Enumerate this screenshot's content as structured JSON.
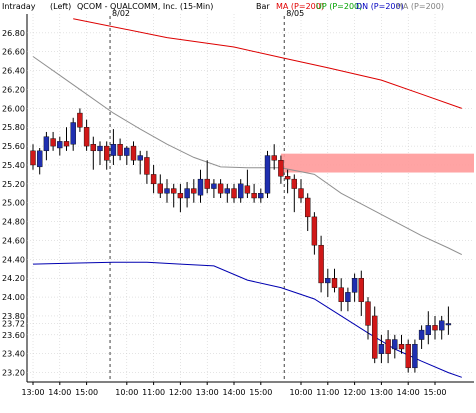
{
  "header": {
    "interval_label": "Intraday",
    "axis_side": "(Left)",
    "title": "QCOM - QUALCOMM, Inc. (15-Min)",
    "type_label": "Bar",
    "legend": [
      {
        "label": "MA (P=200)",
        "color": "#e00000"
      },
      {
        "label": "UP (P=200)",
        "color": "#00a000"
      },
      {
        "label": "DN (P=200)",
        "color": "#0000c0"
      },
      {
        "label": "MA (P=200)",
        "color": "#808080"
      }
    ]
  },
  "colors": {
    "up_candle": "#1f2fb0",
    "down_candle": "#d01818",
    "wick": "#000000",
    "ma_red": "#dd0000",
    "ma_gray": "#909090",
    "ma_blue": "#0000b0",
    "zone": "#ff9a9a",
    "grid": "#c8c8c8",
    "session": "#404040"
  },
  "chart_data": {
    "type": "candlestick",
    "title": "QCOM - QUALCOMM, Inc. (15-Min)",
    "ylim": [
      23.1,
      27.0
    ],
    "y_ticks": [
      "26.80",
      "26.60",
      "26.40",
      "26.20",
      "26.00",
      "25.80",
      "25.60",
      "25.40",
      "25.20",
      "25.00",
      "24.80",
      "24.60",
      "24.40",
      "24.20",
      "24.00",
      "23.80",
      "23.72",
      "23.60",
      "23.40",
      "23.20"
    ],
    "x_ticks": [
      {
        "bar": 0,
        "label": "13:00"
      },
      {
        "bar": 4,
        "label": "14:00"
      },
      {
        "bar": 8,
        "label": "15:00"
      },
      {
        "bar": 14,
        "label": "10:00"
      },
      {
        "bar": 18,
        "label": "11:00"
      },
      {
        "bar": 22,
        "label": "12:00"
      },
      {
        "bar": 26,
        "label": "13:00"
      },
      {
        "bar": 30,
        "label": "14:00"
      },
      {
        "bar": 34,
        "label": "15:00"
      },
      {
        "bar": 40,
        "label": "10:00"
      },
      {
        "bar": 44,
        "label": "11:00"
      },
      {
        "bar": 48,
        "label": "12:00"
      },
      {
        "bar": 52,
        "label": "13:00"
      },
      {
        "bar": 56,
        "label": "14:00"
      },
      {
        "bar": 60,
        "label": "15:00"
      }
    ],
    "sessions": [
      {
        "bar": 11.5,
        "label": "8/02"
      },
      {
        "bar": 37.5,
        "label": "8/05"
      }
    ],
    "candles": [
      {
        "o": 25.55,
        "h": 25.62,
        "l": 25.35,
        "c": 25.4
      },
      {
        "o": 25.38,
        "h": 25.58,
        "l": 25.3,
        "c": 25.55
      },
      {
        "o": 25.55,
        "h": 25.75,
        "l": 25.45,
        "c": 25.7
      },
      {
        "o": 25.68,
        "h": 25.75,
        "l": 25.55,
        "c": 25.6
      },
      {
        "o": 25.58,
        "h": 25.7,
        "l": 25.5,
        "c": 25.65
      },
      {
        "o": 25.65,
        "h": 25.8,
        "l": 25.55,
        "c": 25.6
      },
      {
        "o": 25.62,
        "h": 25.9,
        "l": 25.55,
        "c": 25.85
      },
      {
        "o": 25.95,
        "h": 26.0,
        "l": 25.75,
        "c": 25.8
      },
      {
        "o": 25.8,
        "h": 25.88,
        "l": 25.55,
        "c": 25.6
      },
      {
        "o": 25.62,
        "h": 25.7,
        "l": 25.35,
        "c": 25.55
      },
      {
        "o": 25.55,
        "h": 25.65,
        "l": 25.4,
        "c": 25.6
      },
      {
        "o": 25.6,
        "h": 25.65,
        "l": 25.35,
        "c": 25.45
      },
      {
        "o": 25.5,
        "h": 25.78,
        "l": 25.4,
        "c": 25.62
      },
      {
        "o": 25.62,
        "h": 25.68,
        "l": 25.45,
        "c": 25.5
      },
      {
        "o": 25.5,
        "h": 25.6,
        "l": 25.4,
        "c": 25.58
      },
      {
        "o": 25.6,
        "h": 25.65,
        "l": 25.4,
        "c": 25.45
      },
      {
        "o": 25.45,
        "h": 25.55,
        "l": 25.3,
        "c": 25.5
      },
      {
        "o": 25.48,
        "h": 25.55,
        "l": 25.2,
        "c": 25.3
      },
      {
        "o": 25.3,
        "h": 25.4,
        "l": 25.1,
        "c": 25.2
      },
      {
        "o": 25.2,
        "h": 25.3,
        "l": 25.05,
        "c": 25.1
      },
      {
        "o": 25.1,
        "h": 25.25,
        "l": 25.0,
        "c": 25.15
      },
      {
        "o": 25.15,
        "h": 25.2,
        "l": 24.95,
        "c": 25.1
      },
      {
        "o": 25.1,
        "h": 25.2,
        "l": 24.9,
        "c": 25.05
      },
      {
        "o": 25.05,
        "h": 25.22,
        "l": 24.95,
        "c": 25.15
      },
      {
        "o": 25.15,
        "h": 25.25,
        "l": 25.0,
        "c": 25.1
      },
      {
        "o": 25.08,
        "h": 25.35,
        "l": 25.0,
        "c": 25.25
      },
      {
        "o": 25.25,
        "h": 25.45,
        "l": 25.1,
        "c": 25.15
      },
      {
        "o": 25.15,
        "h": 25.25,
        "l": 25.05,
        "c": 25.2
      },
      {
        "o": 25.2,
        "h": 25.25,
        "l": 25.05,
        "c": 25.1
      },
      {
        "o": 25.1,
        "h": 25.2,
        "l": 25.0,
        "c": 25.15
      },
      {
        "o": 25.15,
        "h": 25.2,
        "l": 25.0,
        "c": 25.05
      },
      {
        "o": 25.05,
        "h": 25.25,
        "l": 25.0,
        "c": 25.2
      },
      {
        "o": 25.18,
        "h": 25.35,
        "l": 25.05,
        "c": 25.1
      },
      {
        "o": 25.1,
        "h": 25.2,
        "l": 25.0,
        "c": 25.05
      },
      {
        "o": 25.05,
        "h": 25.15,
        "l": 25.0,
        "c": 25.1
      },
      {
        "o": 25.1,
        "h": 25.55,
        "l": 25.05,
        "c": 25.5
      },
      {
        "o": 25.5,
        "h": 25.62,
        "l": 25.35,
        "c": 25.45
      },
      {
        "o": 25.45,
        "h": 25.5,
        "l": 25.2,
        "c": 25.28
      },
      {
        "o": 25.28,
        "h": 25.35,
        "l": 25.1,
        "c": 25.25
      },
      {
        "o": 25.25,
        "h": 25.3,
        "l": 24.9,
        "c": 25.15
      },
      {
        "o": 25.15,
        "h": 25.25,
        "l": 25.0,
        "c": 25.05
      },
      {
        "o": 25.05,
        "h": 25.1,
        "l": 24.7,
        "c": 24.85
      },
      {
        "o": 24.85,
        "h": 24.9,
        "l": 24.45,
        "c": 24.55
      },
      {
        "o": 24.55,
        "h": 24.65,
        "l": 24.05,
        "c": 24.15
      },
      {
        "o": 24.15,
        "h": 24.3,
        "l": 24.0,
        "c": 24.2
      },
      {
        "o": 24.2,
        "h": 24.3,
        "l": 24.05,
        "c": 24.1
      },
      {
        "o": 24.1,
        "h": 24.2,
        "l": 23.85,
        "c": 23.95
      },
      {
        "o": 23.95,
        "h": 24.1,
        "l": 23.85,
        "c": 24.05
      },
      {
        "o": 24.05,
        "h": 24.25,
        "l": 23.95,
        "c": 24.2
      },
      {
        "o": 24.2,
        "h": 24.28,
        "l": 23.8,
        "c": 23.95
      },
      {
        "o": 23.95,
        "h": 24.0,
        "l": 23.55,
        "c": 23.7
      },
      {
        "o": 23.8,
        "h": 23.9,
        "l": 23.3,
        "c": 23.35
      },
      {
        "o": 23.4,
        "h": 23.6,
        "l": 23.3,
        "c": 23.5
      },
      {
        "o": 23.55,
        "h": 23.65,
        "l": 23.3,
        "c": 23.4
      },
      {
        "o": 23.45,
        "h": 23.6,
        "l": 23.35,
        "c": 23.55
      },
      {
        "o": 23.5,
        "h": 23.6,
        "l": 23.4,
        "c": 23.45
      },
      {
        "o": 23.5,
        "h": 23.55,
        "l": 23.2,
        "c": 23.25
      },
      {
        "o": 23.25,
        "h": 23.55,
        "l": 23.2,
        "c": 23.5
      },
      {
        "o": 23.55,
        "h": 23.7,
        "l": 23.45,
        "c": 23.65
      },
      {
        "o": 23.6,
        "h": 23.85,
        "l": 23.5,
        "c": 23.7
      },
      {
        "o": 23.7,
        "h": 23.8,
        "l": 23.55,
        "c": 23.65
      },
      {
        "o": 23.65,
        "h": 23.8,
        "l": 23.55,
        "c": 23.75
      },
      {
        "o": 23.72,
        "h": 23.9,
        "l": 23.6,
        "c": 23.72
      }
    ],
    "series": [
      {
        "key": "ma_red",
        "points": [
          [
            6,
            26.95
          ],
          [
            20,
            26.75
          ],
          [
            30,
            26.65
          ],
          [
            37.5,
            26.53
          ],
          [
            44,
            26.43
          ],
          [
            52,
            26.3
          ],
          [
            58,
            26.15
          ],
          [
            64,
            26.0
          ]
        ]
      },
      {
        "key": "ma_gray",
        "points": [
          [
            0,
            26.55
          ],
          [
            4,
            26.35
          ],
          [
            8,
            26.15
          ],
          [
            12,
            25.95
          ],
          [
            16,
            25.78
          ],
          [
            20,
            25.62
          ],
          [
            24,
            25.48
          ],
          [
            28,
            25.38
          ],
          [
            32,
            25.37
          ],
          [
            37,
            25.37
          ],
          [
            42,
            25.3
          ],
          [
            46,
            25.1
          ],
          [
            50,
            24.95
          ],
          [
            54,
            24.8
          ],
          [
            58,
            24.65
          ],
          [
            62,
            24.52
          ],
          [
            64,
            24.45
          ]
        ]
      },
      {
        "key": "ma_blue",
        "points": [
          [
            0,
            24.35
          ],
          [
            6,
            24.36
          ],
          [
            12,
            24.37
          ],
          [
            17,
            24.37
          ],
          [
            22,
            24.35
          ],
          [
            27,
            24.33
          ],
          [
            32,
            24.18
          ],
          [
            37,
            24.1
          ],
          [
            42,
            23.98
          ],
          [
            46,
            23.8
          ],
          [
            50,
            23.62
          ],
          [
            54,
            23.45
          ],
          [
            58,
            23.32
          ],
          [
            62,
            23.2
          ],
          [
            64,
            23.15
          ]
        ]
      }
    ],
    "zone": {
      "from_bar": 37,
      "y_low": 25.32,
      "y_high": 25.52
    }
  }
}
